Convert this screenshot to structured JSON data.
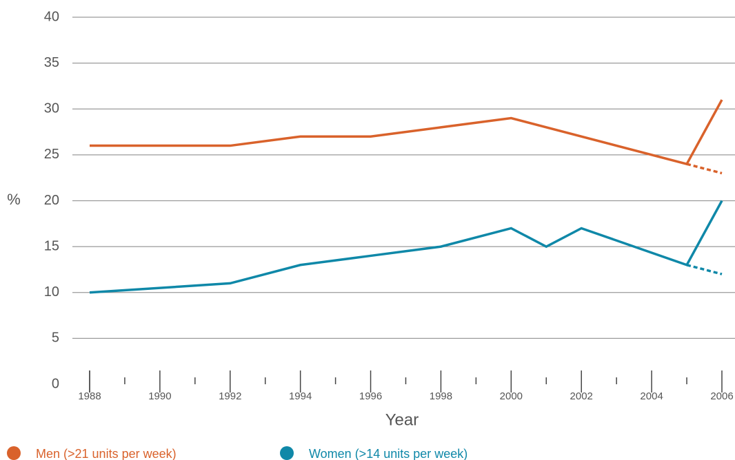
{
  "chart_data": {
    "type": "line",
    "y_label": "%",
    "x_label": "Year",
    "xlim": [
      1988,
      2006
    ],
    "xticks": [
      1988,
      1990,
      1992,
      1994,
      1996,
      1998,
      2000,
      2002,
      2004,
      2006
    ],
    "xminor": [
      1989,
      1991,
      1993,
      1995,
      1997,
      1999,
      2001,
      2003,
      2005
    ],
    "ylim": [
      0,
      40
    ],
    "yticks": [
      0,
      5,
      10,
      15,
      20,
      25,
      30,
      35,
      40
    ],
    "grid": true,
    "series": [
      {
        "name": "Men (>21 units per week)",
        "color": "#d9622b",
        "style": "solid",
        "x": [
          1988,
          1992,
          1994,
          1996,
          1998,
          2000,
          2005,
          2006
        ],
        "values": [
          26,
          26,
          27,
          27,
          28,
          29,
          24,
          31
        ]
      },
      {
        "name": "Women (>14 units per week)",
        "color": "#0f88a8",
        "style": "solid",
        "x": [
          1988,
          1992,
          1994,
          1996,
          1998,
          2000,
          2001,
          2002,
          2005,
          2006
        ],
        "values": [
          10,
          11,
          13,
          14,
          15,
          17,
          15,
          17,
          13,
          20
        ]
      },
      {
        "color": "#d9622b",
        "style": "dashed",
        "x": [
          2005,
          2006
        ],
        "values": [
          24,
          23
        ]
      },
      {
        "color": "#0f88a8",
        "style": "dashed",
        "x": [
          2005,
          2006
        ],
        "values": [
          13,
          12
        ]
      }
    ]
  }
}
